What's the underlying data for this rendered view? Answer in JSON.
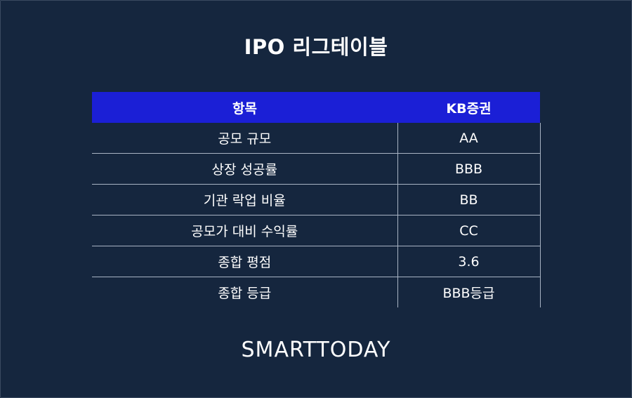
{
  "title": "IPO 리그테이블",
  "table": {
    "headers": [
      "항목",
      "KB증권"
    ],
    "rows": [
      {
        "item": "공모 규모",
        "value": "AA"
      },
      {
        "item": "상장 성공률",
        "value": "BBB"
      },
      {
        "item": "기관 락업 비율",
        "value": "BB"
      },
      {
        "item": "공모가 대비 수익률",
        "value": "CC"
      },
      {
        "item": "종합 평점",
        "value": "3.6"
      },
      {
        "item": "종합 등급",
        "value": "BBB등급"
      }
    ]
  },
  "logo": "SMARTTODAY",
  "colors": {
    "background": "#15263e",
    "header_bg": "#1b1fd6",
    "grid_line": "#a9b4c4",
    "text": "#ffffff"
  }
}
